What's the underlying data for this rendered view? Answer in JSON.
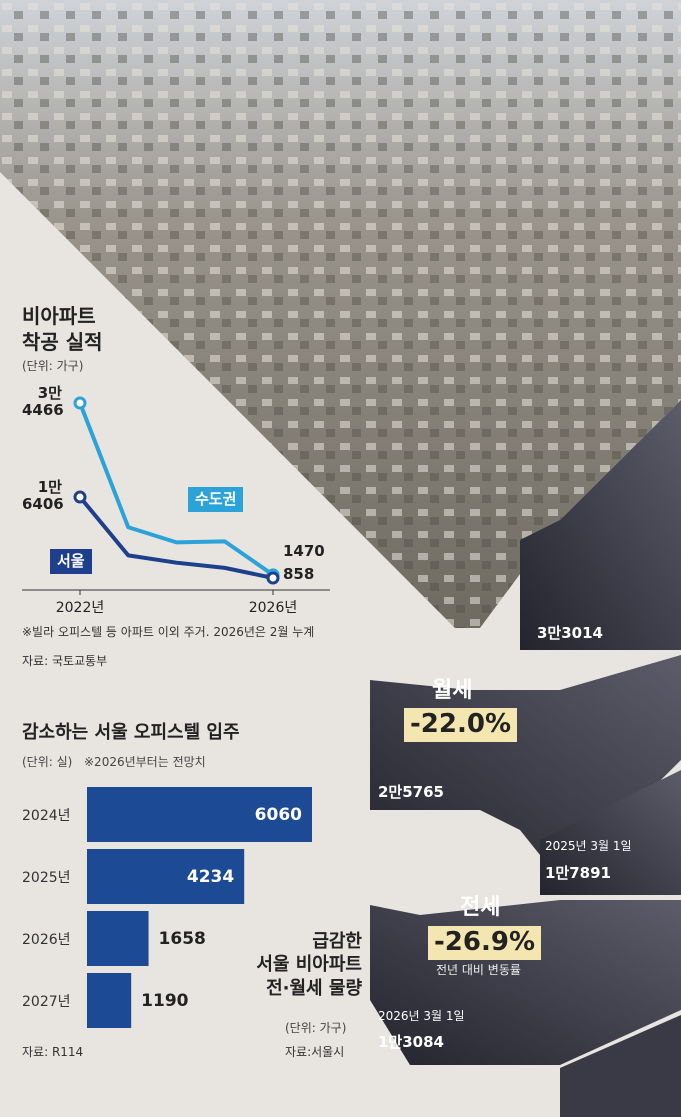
{
  "chart_data": [
    {
      "type": "line",
      "title_lines": [
        "비아파트",
        "착공 실적"
      ],
      "unit": "(단위: 가구)",
      "categories": [
        "2022년",
        null,
        null,
        null,
        "2026년"
      ],
      "series": [
        {
          "name": "수도권",
          "color": "#2ba3d9",
          "values": [
            34466,
            10600,
            7700,
            7900,
            1470
          ],
          "value_labels": [
            "3만 4466",
            null,
            null,
            null,
            "1470"
          ]
        },
        {
          "name": "서울",
          "color": "#1d3f8c",
          "values": [
            16406,
            5200,
            3800,
            2800,
            858
          ],
          "value_labels": [
            "1만 6406",
            null,
            null,
            null,
            "858"
          ]
        }
      ],
      "note": "※빌라 오피스텔 등 아파트 이외 주거. 2026년은 2월 누계",
      "source": "자료: 국토교통부"
    },
    {
      "type": "hbar",
      "title": "감소하는 서울 오피스텔 입주",
      "unit": "(단위: 실)",
      "note": "※2026년부터는 전망치",
      "categories": [
        "2024년",
        "2025년",
        "2026년",
        "2027년"
      ],
      "values": [
        6060,
        4234,
        1658,
        1190
      ],
      "color": "#1c4a94",
      "source": "자료: R114"
    }
  ],
  "rent_panel": {
    "title_lines": [
      "급감한",
      "서울 비아파트",
      "전·월세 물량"
    ],
    "unit": "(단위: 가구)",
    "source": "자료:서울시",
    "monthly": {
      "label": "월세",
      "change": "-22.0%",
      "before": "3만3014",
      "after": "2만5765"
    },
    "jeonse": {
      "label": "전세",
      "change": "-26.9%",
      "change_note": "전년 대비 변동률",
      "before_date": "2025년 3월 1일",
      "before": "1만7891",
      "after_date": "2026년 3월 1일",
      "after": "1만3084"
    }
  }
}
